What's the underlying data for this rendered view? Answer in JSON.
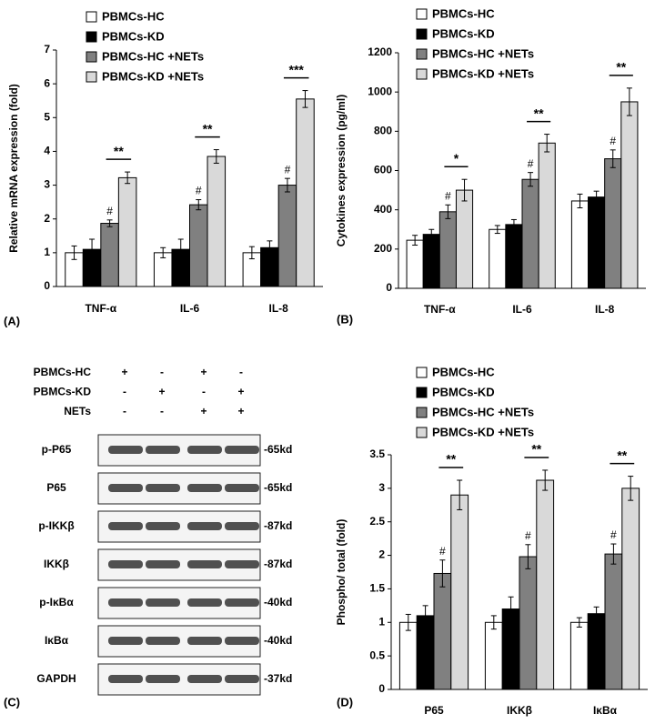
{
  "chart_data": [
    {
      "type": "bar",
      "panel_label": "(A)",
      "y_label": "Relative mRNA expression (fold)",
      "categories": [
        "TNF-α",
        "IL-6",
        "IL-8"
      ],
      "series": [
        {
          "name": "PBMCs-HC",
          "color": "#ffffff",
          "values": [
            1.0,
            1.0,
            1.0
          ],
          "errors": [
            0.2,
            0.15,
            0.18
          ]
        },
        {
          "name": "PBMCs-KD",
          "color": "#000000",
          "values": [
            1.1,
            1.1,
            1.15
          ],
          "errors": [
            0.3,
            0.3,
            0.2
          ]
        },
        {
          "name": "PBMCs-HC +NETs",
          "color": "#808080",
          "values": [
            1.87,
            2.42,
            3.0
          ],
          "errors": [
            0.1,
            0.15,
            0.2
          ],
          "marks": [
            "#",
            "#",
            "#"
          ]
        },
        {
          "name": "PBMCs-KD +NETs",
          "color": "#d9d9d9",
          "values": [
            3.22,
            3.85,
            5.55
          ],
          "errors": [
            0.17,
            0.2,
            0.25
          ]
        }
      ],
      "significance": [
        "**",
        "**",
        "***"
      ],
      "ylim": [
        0,
        7
      ],
      "yticks": [
        0,
        1,
        2,
        3,
        4,
        5,
        6,
        7
      ]
    },
    {
      "type": "bar",
      "panel_label": "(B)",
      "y_label": "Cytokines expression (pg/ml)",
      "categories": [
        "TNF-α",
        "IL-6",
        "IL-8"
      ],
      "series": [
        {
          "name": "PBMCs-HC",
          "color": "#ffffff",
          "values": [
            245,
            300,
            445
          ],
          "errors": [
            25,
            20,
            35
          ]
        },
        {
          "name": "PBMCs-KD",
          "color": "#000000",
          "values": [
            275,
            325,
            465
          ],
          "errors": [
            25,
            25,
            30
          ]
        },
        {
          "name": "PBMCs-HC +NETs",
          "color": "#808080",
          "values": [
            390,
            555,
            660
          ],
          "errors": [
            35,
            35,
            45
          ],
          "marks": [
            "#",
            "#",
            "#"
          ]
        },
        {
          "name": "PBMCs-KD +NETs",
          "color": "#d9d9d9",
          "values": [
            500,
            740,
            950
          ],
          "errors": [
            55,
            45,
            70
          ]
        }
      ],
      "significance": [
        "*",
        "**",
        "**"
      ],
      "ylim": [
        0,
        1200
      ],
      "yticks": [
        0,
        200,
        400,
        600,
        800,
        1000,
        1200
      ]
    },
    {
      "type": "bar",
      "panel_label": "(D)",
      "y_label": "Phospho/ total (fold)",
      "categories": [
        "P65",
        "IKKβ",
        "IκBα"
      ],
      "series": [
        {
          "name": "PBMCs-HC",
          "color": "#ffffff",
          "values": [
            1.0,
            1.0,
            1.0
          ],
          "errors": [
            0.12,
            0.1,
            0.07
          ]
        },
        {
          "name": "PBMCs-KD",
          "color": "#000000",
          "values": [
            1.1,
            1.2,
            1.13
          ],
          "errors": [
            0.15,
            0.18,
            0.1
          ]
        },
        {
          "name": "PBMCs-HC +NETs",
          "color": "#808080",
          "values": [
            1.73,
            1.98,
            2.02
          ],
          "errors": [
            0.2,
            0.18,
            0.15
          ],
          "marks": [
            "#",
            "#",
            "#"
          ]
        },
        {
          "name": "PBMCs-KD +NETs",
          "color": "#d9d9d9",
          "values": [
            2.9,
            3.12,
            3.0
          ],
          "errors": [
            0.22,
            0.15,
            0.18
          ]
        }
      ],
      "significance": [
        "**",
        "**",
        "**"
      ],
      "ylim": [
        0,
        3.5
      ],
      "yticks": [
        0,
        0.5,
        1,
        1.5,
        2,
        2.5,
        3,
        3.5
      ]
    }
  ],
  "blot": {
    "panel_label": "(C)",
    "conditions": [
      {
        "label": "PBMCs-HC",
        "signs": [
          "+",
          "-",
          "+",
          "-"
        ]
      },
      {
        "label": "PBMCs-KD",
        "signs": [
          "-",
          "+",
          "-",
          "+"
        ]
      },
      {
        "label": "NETs",
        "signs": [
          "-",
          "-",
          "+",
          "+"
        ]
      }
    ],
    "bands": [
      {
        "label": "p-P65",
        "size": "-65kd"
      },
      {
        "label": "P65",
        "size": "-65kd"
      },
      {
        "label": "p-IKKβ",
        "size": "-87kd"
      },
      {
        "label": "IKKβ",
        "size": "-87kd"
      },
      {
        "label": "p-IκBα",
        "size": "-40kd"
      },
      {
        "label": "IκBα",
        "size": "-40kd"
      },
      {
        "label": "GAPDH",
        "size": "-37kd"
      }
    ]
  }
}
